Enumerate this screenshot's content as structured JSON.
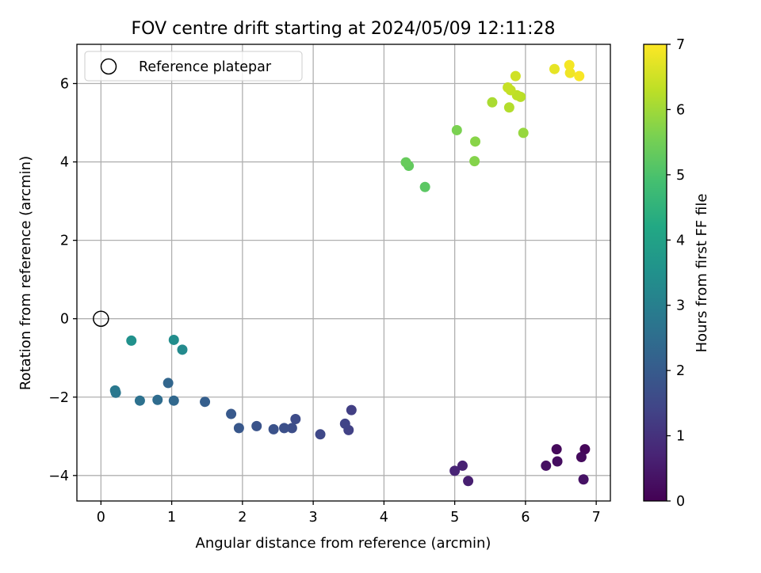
{
  "chart_data": {
    "type": "scatter",
    "title": "FOV centre drift starting at 2024/05/09 12:11:28",
    "xlabel": "Angular distance from reference (arcmin)",
    "ylabel": "Rotation from reference (arcmin)",
    "xlim": [
      -0.34,
      7.2
    ],
    "ylim": [
      -4.65,
      7.0
    ],
    "xticks": [
      "0",
      "1",
      "2",
      "3",
      "4",
      "5",
      "6",
      "7"
    ],
    "yticks": [
      "−4",
      "−2",
      "0",
      "2",
      "4",
      "6"
    ],
    "grid": true,
    "legend": {
      "placement": "top-left",
      "label": "Reference platepar"
    },
    "reference_point": {
      "x": 0,
      "y": 0
    },
    "colorbar": {
      "label": "Hours from first FF file",
      "range": [
        0,
        7
      ],
      "ticks": [
        "0",
        "1",
        "2",
        "3",
        "4",
        "5",
        "6",
        "7"
      ],
      "colormap": "viridis"
    },
    "points": [
      {
        "x": 6.84,
        "y": -3.33,
        "h": 0.1
      },
      {
        "x": 6.44,
        "y": -3.33,
        "h": 0.15
      },
      {
        "x": 6.79,
        "y": -3.53,
        "h": 0.2
      },
      {
        "x": 6.45,
        "y": -3.64,
        "h": 0.25
      },
      {
        "x": 6.29,
        "y": -3.75,
        "h": 0.3
      },
      {
        "x": 6.82,
        "y": -4.1,
        "h": 0.35
      },
      {
        "x": 5.19,
        "y": -4.14,
        "h": 0.6
      },
      {
        "x": 5.11,
        "y": -3.75,
        "h": 0.65
      },
      {
        "x": 5.0,
        "y": -3.88,
        "h": 0.7
      },
      {
        "x": 3.54,
        "y": -2.33,
        "h": 1.3
      },
      {
        "x": 3.5,
        "y": -2.84,
        "h": 1.35
      },
      {
        "x": 3.45,
        "y": -2.68,
        "h": 1.4
      },
      {
        "x": 3.1,
        "y": -2.95,
        "h": 1.5
      },
      {
        "x": 2.75,
        "y": -2.56,
        "h": 1.6
      },
      {
        "x": 2.7,
        "y": -2.79,
        "h": 1.65
      },
      {
        "x": 2.59,
        "y": -2.79,
        "h": 1.7
      },
      {
        "x": 2.44,
        "y": -2.82,
        "h": 1.75
      },
      {
        "x": 2.2,
        "y": -2.74,
        "h": 1.8
      },
      {
        "x": 1.95,
        "y": -2.79,
        "h": 1.9
      },
      {
        "x": 1.84,
        "y": -2.43,
        "h": 1.95
      },
      {
        "x": 1.47,
        "y": -2.12,
        "h": 2.1
      },
      {
        "x": 0.95,
        "y": -1.64,
        "h": 2.3
      },
      {
        "x": 1.03,
        "y": -2.09,
        "h": 2.35
      },
      {
        "x": 0.8,
        "y": -2.07,
        "h": 2.45
      },
      {
        "x": 0.55,
        "y": -2.09,
        "h": 2.6
      },
      {
        "x": 0.21,
        "y": -1.89,
        "h": 2.75
      },
      {
        "x": 0.2,
        "y": -1.83,
        "h": 2.8
      },
      {
        "x": 1.15,
        "y": -0.79,
        "h": 3.3
      },
      {
        "x": 1.03,
        "y": -0.54,
        "h": 3.4
      },
      {
        "x": 0.43,
        "y": -0.56,
        "h": 3.5
      },
      {
        "x": 4.58,
        "y": 3.36,
        "h": 5.2
      },
      {
        "x": 4.35,
        "y": 3.9,
        "h": 5.3
      },
      {
        "x": 4.31,
        "y": 3.99,
        "h": 5.35
      },
      {
        "x": 5.03,
        "y": 4.81,
        "h": 5.6
      },
      {
        "x": 5.28,
        "y": 4.02,
        "h": 5.7
      },
      {
        "x": 5.29,
        "y": 4.52,
        "h": 5.75
      },
      {
        "x": 5.97,
        "y": 4.74,
        "h": 5.9
      },
      {
        "x": 5.53,
        "y": 5.52,
        "h": 6.1
      },
      {
        "x": 5.77,
        "y": 5.39,
        "h": 6.2
      },
      {
        "x": 5.93,
        "y": 5.66,
        "h": 6.25
      },
      {
        "x": 5.88,
        "y": 5.7,
        "h": 6.3
      },
      {
        "x": 5.79,
        "y": 5.83,
        "h": 6.35
      },
      {
        "x": 5.75,
        "y": 5.9,
        "h": 6.4
      },
      {
        "x": 5.86,
        "y": 6.19,
        "h": 6.5
      },
      {
        "x": 6.41,
        "y": 6.37,
        "h": 6.75
      },
      {
        "x": 6.63,
        "y": 6.27,
        "h": 6.85
      },
      {
        "x": 6.62,
        "y": 6.47,
        "h": 6.9
      },
      {
        "x": 6.76,
        "y": 6.19,
        "h": 6.95
      }
    ]
  }
}
